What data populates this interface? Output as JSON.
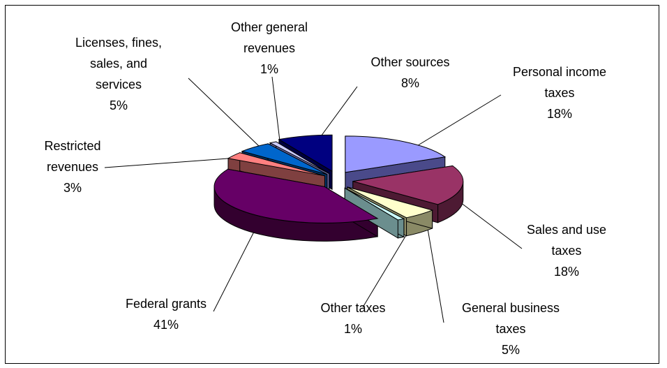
{
  "chart_data": {
    "type": "pie",
    "style": "exploded 3D pie",
    "slices": [
      {
        "label_lines": [
          "Personal income",
          "taxes"
        ],
        "value_label": "18%",
        "value": 18,
        "color": "#9a9aff",
        "side_color": "#4a4a8a"
      },
      {
        "label_lines": [
          "Sales and use",
          "taxes"
        ],
        "value_label": "18%",
        "value": 18,
        "color": "#993366",
        "side_color": "#4d1a33"
      },
      {
        "label_lines": [
          "General business",
          "taxes"
        ],
        "value_label": "5%",
        "value": 5,
        "color": "#ffffcc",
        "side_color": "#8a8a66"
      },
      {
        "label_lines": [
          "Other taxes"
        ],
        "value_label": "1%",
        "value": 1,
        "color": "#ccffff",
        "side_color": "#6b8e8e"
      },
      {
        "label_lines": [
          "Federal grants"
        ],
        "value_label": "41%",
        "value": 41,
        "color": "#660066",
        "side_color": "#33002f"
      },
      {
        "label_lines": [
          "Restricted",
          "revenues"
        ],
        "value_label": "3%",
        "value": 3,
        "color": "#ff8080",
        "side_color": "#7f4040"
      },
      {
        "label_lines": [
          "Licenses, fines,",
          "sales, and",
          "services"
        ],
        "value_label": "5%",
        "value": 5,
        "color": "#0066cc",
        "side_color": "#003366"
      },
      {
        "label_lines": [
          "Other general",
          "revenues"
        ],
        "value_label": "1%",
        "value": 1,
        "color": "#ccccff",
        "side_color": "#6666a0"
      },
      {
        "label_lines": [
          "Other sources"
        ],
        "value_label": "8%",
        "value": 8,
        "color": "#000080",
        "side_color": "#000040"
      }
    ]
  }
}
